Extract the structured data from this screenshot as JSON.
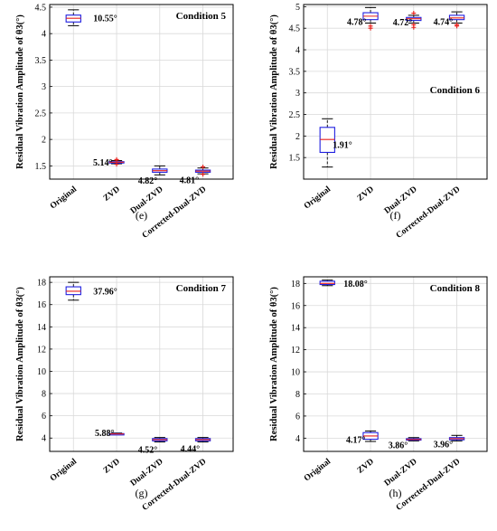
{
  "chart_data": [
    {
      "type": "box",
      "panel_label": "(e)",
      "condition_label": "Condition 5",
      "ylabel": "Residual Vibration Amplitude of θ3(°)",
      "ylim": [
        1.25,
        4.55
      ],
      "yticks": [
        "1.5",
        "2",
        "2.5",
        "3",
        "3.5",
        "4",
        "4.5"
      ],
      "categories": [
        "Original",
        "ZVD",
        "Dual-ZVD",
        "Corrected-Dual-ZVD"
      ],
      "boxes": [
        {
          "min": 4.15,
          "q1": 4.22,
          "median": 4.29,
          "q3": 4.35,
          "max": 4.45,
          "outliers": []
        },
        {
          "min": 1.54,
          "q1": 1.56,
          "median": 1.57,
          "q3": 1.58,
          "max": 1.6,
          "outliers": [
            1.62,
            1.61,
            1.53
          ]
        },
        {
          "min": 1.33,
          "q1": 1.38,
          "median": 1.41,
          "q3": 1.44,
          "max": 1.5,
          "outliers": []
        },
        {
          "min": 1.35,
          "q1": 1.38,
          "median": 1.4,
          "q3": 1.42,
          "max": 1.46,
          "outliers": [
            1.48,
            1.34
          ]
        }
      ],
      "annotations": [
        "10.55°",
        "5.14°",
        "4.82°",
        "4.81°"
      ]
    },
    {
      "type": "box",
      "panel_label": "(f)",
      "condition_label": "Condition 6",
      "ylabel": "Residual Vibration Amplitude of θ3(°)",
      "ylim": [
        1.0,
        5.05
      ],
      "yticks": [
        "1.5",
        "2",
        "2.5",
        "3",
        "3.5",
        "4",
        "4.5",
        "5"
      ],
      "categories": [
        "Original",
        "ZVD",
        "Dual-ZVD",
        "Corrected-Dual-ZVD"
      ],
      "boxes": [
        {
          "min": 1.28,
          "q1": 1.62,
          "median": 1.92,
          "q3": 2.2,
          "max": 2.4,
          "outliers": []
        },
        {
          "min": 4.62,
          "q1": 4.7,
          "median": 4.78,
          "q3": 4.86,
          "max": 4.98,
          "outliers": [
            4.55,
            4.5
          ]
        },
        {
          "min": 4.62,
          "q1": 4.68,
          "median": 4.72,
          "q3": 4.75,
          "max": 4.8,
          "outliers": [
            4.85,
            4.58,
            4.52
          ]
        },
        {
          "min": 4.62,
          "q1": 4.7,
          "median": 4.74,
          "q3": 4.8,
          "max": 4.88,
          "outliers": [
            4.58,
            4.55
          ]
        }
      ],
      "annotations": [
        "1.91°",
        "4.78°",
        "4.72°",
        "4.74°"
      ]
    },
    {
      "type": "box",
      "panel_label": "(g)",
      "condition_label": "Condition 7",
      "ylabel": "Residual Vibration Amplitude of θ3(°)",
      "ylim": [
        2.8,
        18.5
      ],
      "yticks": [
        "4",
        "6",
        "8",
        "10",
        "12",
        "14",
        "16",
        "18"
      ],
      "categories": [
        "Original",
        "ZVD",
        "Dual-ZVD",
        "Corrected-Dual-ZVD"
      ],
      "boxes": [
        {
          "min": 16.4,
          "q1": 16.9,
          "median": 17.2,
          "q3": 17.6,
          "max": 18.0,
          "outliers": []
        },
        {
          "min": 4.3,
          "q1": 4.34,
          "median": 4.37,
          "q3": 4.4,
          "max": 4.45,
          "outliers": []
        },
        {
          "min": 3.65,
          "q1": 3.75,
          "median": 3.85,
          "q3": 3.95,
          "max": 4.05,
          "outliers": []
        },
        {
          "min": 3.65,
          "q1": 3.75,
          "median": 3.85,
          "q3": 3.95,
          "max": 4.05,
          "outliers": []
        }
      ],
      "annotations": [
        "37.96°",
        "5.88°",
        "4.52°",
        "4.44°"
      ]
    },
    {
      "type": "box",
      "panel_label": "(h)",
      "condition_label": "Condition 8",
      "ylabel": "Residual Vibration Amplitude of θ3(°)",
      "ylim": [
        2.8,
        18.6
      ],
      "yticks": [
        "4",
        "6",
        "8",
        "10",
        "12",
        "14",
        "16",
        "18"
      ],
      "categories": [
        "Original",
        "ZVD",
        "Dual-ZVD",
        "Corrected-Dual-ZVD"
      ],
      "boxes": [
        {
          "min": 17.8,
          "q1": 17.9,
          "median": 18.0,
          "q3": 18.2,
          "max": 18.3,
          "outliers": []
        },
        {
          "min": 3.7,
          "q1": 3.9,
          "median": 4.2,
          "q3": 4.5,
          "max": 4.65,
          "outliers": []
        },
        {
          "min": 3.75,
          "q1": 3.82,
          "median": 3.88,
          "q3": 3.95,
          "max": 4.05,
          "outliers": []
        },
        {
          "min": 3.75,
          "q1": 3.85,
          "median": 3.95,
          "q3": 4.05,
          "max": 4.25,
          "outliers": []
        }
      ],
      "annotations": [
        "18.08°",
        "4.17°",
        "3.86°",
        "3.96°"
      ]
    }
  ]
}
